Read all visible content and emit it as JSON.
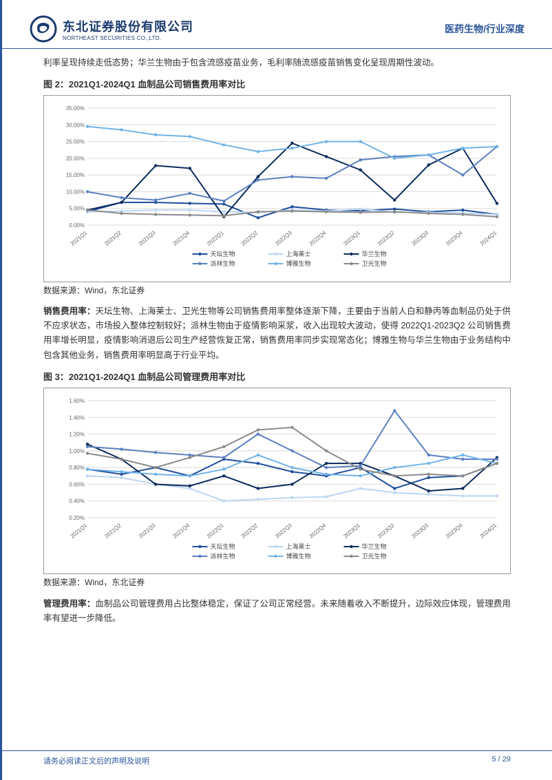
{
  "header": {
    "company_cn": "东北证券股份有限公司",
    "company_en": "NORTHEAST SECURITIES CO.,LTD.",
    "doc_category": "医药生物/行业深度"
  },
  "intro_para": "利率呈现持续走低态势；华兰生物由于包含流感疫苗业务，毛利率随流感疫苗销售变化呈现周期性波动。",
  "fig2": {
    "title": "图 2：2021Q1-2024Q1 血制品公司销售费用率对比",
    "source": "数据来源：Wind，东北证券",
    "type": "line",
    "x_labels": [
      "2021Q1",
      "2021Q2",
      "2021Q3",
      "2021Q4",
      "2022Q1",
      "2022Q2",
      "2022Q3",
      "2022Q4",
      "2023Q1",
      "2023Q2",
      "2023Q3",
      "2023Q4",
      "2024Q1"
    ],
    "ylim": [
      0,
      35
    ],
    "ytick_step": 5,
    "y_suffix": ".00%",
    "grid_color": "#d9d9d9",
    "axis_color": "#808080",
    "background_color": "#ffffff",
    "tick_fontsize": 8,
    "legend_fontsize": 9,
    "series": [
      {
        "name": "天坛生物",
        "color": "#1f4e9c",
        "width": 2,
        "values": [
          4.0,
          6.8,
          6.8,
          6.5,
          6.3,
          2.2,
          5.5,
          4.5,
          4.3,
          4.8,
          4.0,
          4.5,
          3.2
        ]
      },
      {
        "name": "上海莱士",
        "color": "#bcd6f2",
        "width": 2,
        "values": [
          4.0,
          4.2,
          4.5,
          4.5,
          4.0,
          3.8,
          4.5,
          4.2,
          4.8,
          3.8,
          3.8,
          3.6,
          3.2
        ]
      },
      {
        "name": "华兰生物",
        "color": "#0b2a5c",
        "width": 2,
        "values": [
          4.5,
          6.8,
          17.8,
          17.0,
          2.5,
          14.5,
          24.5,
          20.5,
          16.5,
          7.5,
          18.0,
          23.0,
          6.5
        ]
      },
      {
        "name": "派林生物",
        "color": "#5a7fc0",
        "width": 2,
        "values": [
          10.0,
          8.2,
          7.5,
          9.5,
          7.2,
          13.5,
          14.5,
          14.0,
          19.5,
          20.5,
          21.0,
          15.0,
          23.5
        ]
      },
      {
        "name": "博雅生物",
        "color": "#6fb3e8",
        "width": 2,
        "values": [
          29.5,
          28.5,
          27.0,
          26.5,
          24.0,
          22.0,
          23.0,
          25.0,
          25.0,
          20.0,
          21.0,
          23.0,
          23.5
        ]
      },
      {
        "name": "卫光生物",
        "color": "#8a8a8a",
        "width": 2,
        "values": [
          4.5,
          3.5,
          3.2,
          3.0,
          2.8,
          4.0,
          4.2,
          4.0,
          3.8,
          4.0,
          3.5,
          3.2,
          2.5
        ]
      }
    ]
  },
  "para_sales": {
    "label": "销售费用率：",
    "text": "天坛生物、上海莱士、卫光生物等公司销售费用率整体逐渐下降，主要由于当前人白和静丙等血制品仍处于供不应求状态，市场投入整体控制较好；派林生物由于疫情影响采浆，收入出现较大波动，使得 2022Q1-2023Q2 公司销售费用率增长明显，疫情影响消退后公司生产经营恢复正常，销售费用率同步实现常态化；博雅生物与华兰生物由于业务结构中包含其他业务，销售费用率明显高于行业平均。"
  },
  "fig3": {
    "title": "图 3：2021Q1-2024Q1 血制品公司管理费用率对比",
    "source": "数据来源：Wind，东北证券",
    "type": "line",
    "x_labels": [
      "2021Q1",
      "2021Q2",
      "2021Q3",
      "2021Q4",
      "2022Q1",
      "2022Q2",
      "2022Q3",
      "2022Q4",
      "2023Q1",
      "2023Q2",
      "2023Q3",
      "2023Q4",
      "2024Q1"
    ],
    "ylim": [
      0.2,
      1.6
    ],
    "ytick_step": 0.2,
    "y_suffix": "%",
    "grid_color": "#d9d9d9",
    "axis_color": "#808080",
    "background_color": "#ffffff",
    "tick_fontsize": 8,
    "legend_fontsize": 9,
    "series": [
      {
        "name": "天坛生物",
        "color": "#1f4e9c",
        "width": 2,
        "values": [
          0.78,
          0.72,
          0.8,
          0.7,
          0.9,
          0.85,
          0.75,
          0.7,
          0.8,
          0.55,
          0.68,
          0.7,
          0.85
        ]
      },
      {
        "name": "上海莱士",
        "color": "#bcd6f2",
        "width": 2,
        "values": [
          0.7,
          0.68,
          0.6,
          0.55,
          0.4,
          0.42,
          0.44,
          0.45,
          0.55,
          0.5,
          0.48,
          0.46,
          0.46
        ]
      },
      {
        "name": "华兰生物",
        "color": "#0b2a5c",
        "width": 2,
        "values": [
          1.08,
          0.9,
          0.6,
          0.58,
          0.7,
          0.55,
          0.6,
          0.85,
          0.85,
          0.7,
          0.52,
          0.55,
          0.92
        ]
      },
      {
        "name": "派林生物",
        "color": "#5a7fc0",
        "width": 2,
        "values": [
          1.05,
          1.02,
          0.98,
          0.95,
          0.92,
          1.2,
          1.0,
          0.8,
          0.82,
          1.48,
          0.95,
          0.9,
          0.9
        ]
      },
      {
        "name": "博雅生物",
        "color": "#6fb3e8",
        "width": 2,
        "values": [
          0.78,
          0.75,
          0.72,
          0.7,
          0.78,
          0.95,
          0.8,
          0.72,
          0.7,
          0.8,
          0.85,
          0.95,
          0.85
        ]
      },
      {
        "name": "卫光生物",
        "color": "#8a8a8a",
        "width": 2,
        "values": [
          0.97,
          0.9,
          0.8,
          0.92,
          1.05,
          1.25,
          1.28,
          1.0,
          0.78,
          0.7,
          0.72,
          0.7,
          0.85
        ]
      }
    ]
  },
  "para_mgmt": {
    "label": "管理费用率：",
    "text": "血制品公司管理费用占比整体稳定，保证了公司正常经营。未来随着收入不断提升，边际效应体现，管理费用率有望进一步降低。"
  },
  "footer": {
    "disclaimer": "请务必阅读正文后的声明及说明",
    "page": "5 / 29"
  }
}
